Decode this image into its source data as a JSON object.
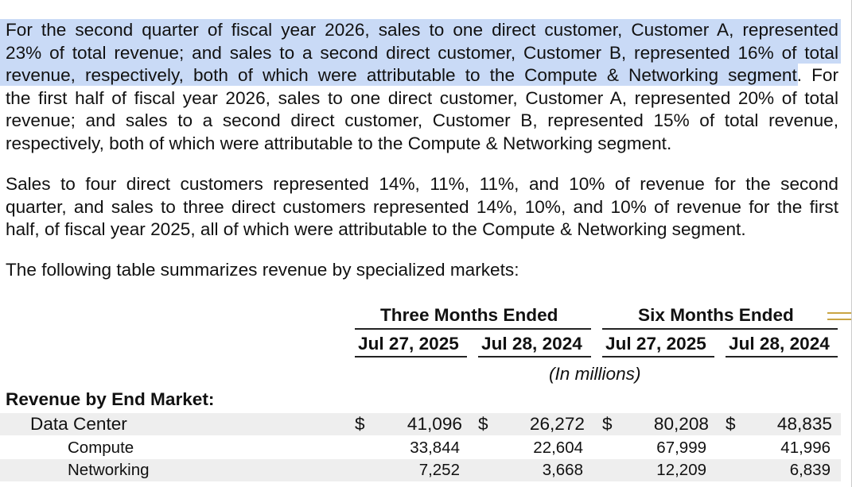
{
  "paragraph1": {
    "highlighted_lines": [
      "For the second quarter of fiscal year 2026, sales to one direct customer, Customer A, represented",
      "23% of total revenue; and sales to a second direct customer, Customer B, represented 16% of total"
    ],
    "line3_highlighted": "revenue, respectively, both of which were attributable to the Compute & Networking segment",
    "line3_rest": ". For",
    "lines": [
      "the first half of fiscal year 2026, sales to one direct customer, Customer A, represented 20% of total",
      "revenue; and sales to a second direct customer, Customer B, represented 15% of total revenue,",
      "respectively, both of which were attributable to the Compute & Networking segment."
    ]
  },
  "paragraph2": {
    "lines": [
      "Sales to four direct customers represented 14%, 11%, 11%, and 10% of revenue for the second",
      "quarter, and sales to three direct customers represented 14%, 10%, and 10% of revenue for the first",
      "half, of fiscal year 2025, all of which were attributable to the Compute & Networking segment."
    ]
  },
  "paragraph3": "The following table summarizes revenue by specialized markets:",
  "table": {
    "group_headers": [
      "Three Months Ended",
      "Six Months Ended"
    ],
    "column_headers": [
      "Jul 27, 2025",
      "Jul 28, 2024",
      "Jul 27, 2025",
      "Jul 28, 2024"
    ],
    "units": "(In millions)",
    "section_title": "Revenue by End Market:",
    "currency_symbol": "$",
    "rows": [
      {
        "label": "Data Center",
        "values": [
          "41,096",
          "26,272",
          "80,208",
          "48,835"
        ]
      },
      {
        "label": "Compute",
        "values": [
          "33,844",
          "22,604",
          "67,999",
          "41,996"
        ]
      },
      {
        "label": "Networking",
        "values": [
          "7,252",
          "3,668",
          "12,209",
          "6,839"
        ]
      }
    ]
  }
}
